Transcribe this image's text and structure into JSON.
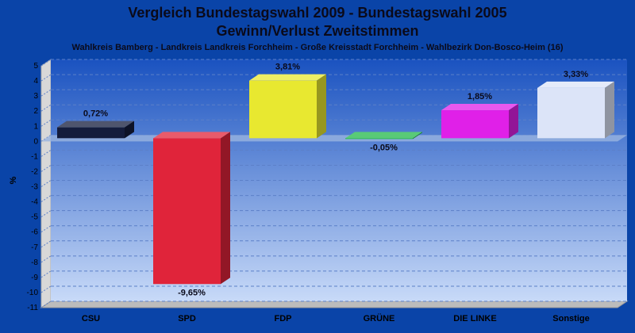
{
  "chart_data": {
    "type": "bar",
    "title": "Vergleich Bundestagswahl 2009 - Bundestagswahl 2005",
    "title_line2": "Gewinn/Verlust Zweitstimmen",
    "subtitle": "Wahlkreis Bamberg - Landkreis Landkreis Forchheim - Große Kreisstadt Forchheim - Wahlbezirk Don-Bosco-Heim (16)",
    "xlabel": "",
    "ylabel": "%",
    "ylim": [
      -11,
      5
    ],
    "yticks": [
      5,
      4,
      3,
      2,
      1,
      0,
      -1,
      -2,
      -3,
      -4,
      -5,
      -6,
      -7,
      -8,
      -9,
      -10,
      -11
    ],
    "grid": true,
    "categories": [
      "CSU",
      "SPD",
      "FDP",
      "GRÜNE",
      "DIE LINKE",
      "Sonstige"
    ],
    "values": [
      0.72,
      -9.65,
      3.81,
      -0.05,
      1.85,
      3.33
    ],
    "value_labels": [
      "0,72%",
      "-9,65%",
      "3,81%",
      "-0,05%",
      "1,85%",
      "3,33%"
    ],
    "colors": [
      "#141c3c",
      "#e0243a",
      "#e8e830",
      "#22b84a",
      "#e020e8",
      "#dce4f8"
    ]
  }
}
